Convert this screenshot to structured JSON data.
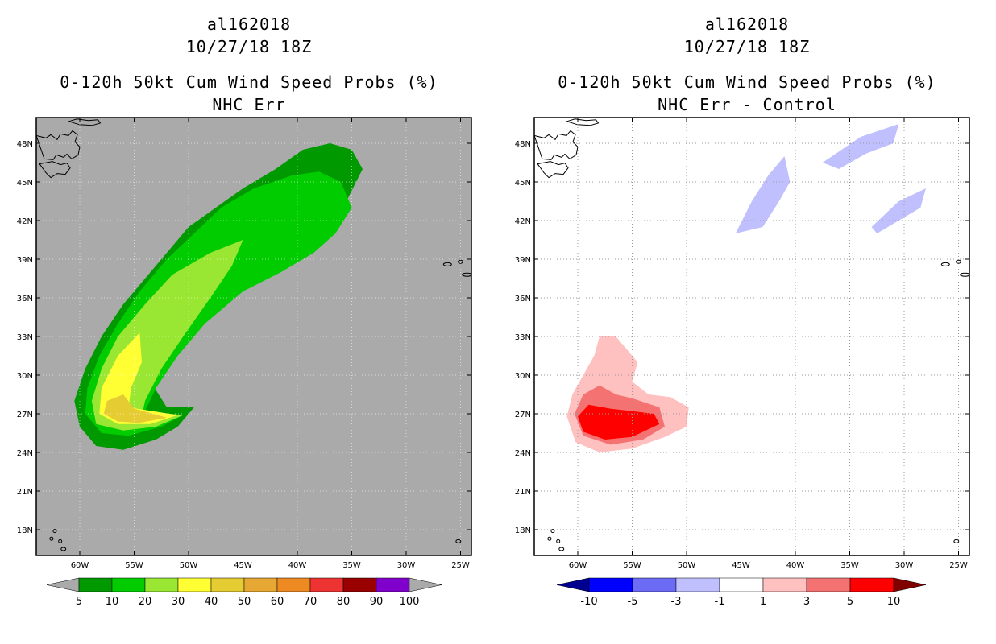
{
  "chart_data": [
    {
      "type": "map-contour",
      "storm_id": "al162018",
      "datetime": "10/27/18 18Z",
      "title": "0-120h 50kt Cum Wind Speed Probs (%)",
      "subtitle": "NHC Err",
      "background_color": "#aaaaaa",
      "lon_range": [
        -64,
        -24
      ],
      "lat_range": [
        16,
        50
      ],
      "x_ticks": [
        "60W",
        "55W",
        "50W",
        "45W",
        "40W",
        "35W",
        "30W",
        "25W"
      ],
      "x_tick_values": [
        -60,
        -55,
        -50,
        -45,
        -40,
        -35,
        -30,
        -25
      ],
      "y_ticks": [
        "48N",
        "45N",
        "42N",
        "39N",
        "36N",
        "33N",
        "30N",
        "27N",
        "24N",
        "21N",
        "18N"
      ],
      "y_tick_values": [
        48,
        45,
        42,
        39,
        36,
        33,
        30,
        27,
        24,
        21,
        18
      ],
      "colorbar": {
        "labels": [
          "5",
          "10",
          "20",
          "30",
          "40",
          "50",
          "60",
          "70",
          "80",
          "90",
          "100"
        ],
        "colors": [
          "#009900",
          "#00cc00",
          "#99e633",
          "#ffff33",
          "#e6cc33",
          "#e6a833",
          "#ee8a22",
          "#ee3333",
          "#990000",
          "#8000cc"
        ],
        "end_colors": [
          "#aaaaaa",
          "#aaaaaa"
        ]
      },
      "contour_levels": [
        {
          "threshold": "5",
          "color": "#009900",
          "outline": [
            [
              -49.5,
              27.5
            ],
            [
              -51,
              26
            ],
            [
              -53,
              25
            ],
            [
              -56,
              24.2
            ],
            [
              -58.5,
              24.5
            ],
            [
              -60,
              26
            ],
            [
              -60.5,
              28
            ],
            [
              -59.5,
              30.5
            ],
            [
              -58,
              33
            ],
            [
              -56,
              35.5
            ],
            [
              -54,
              37.5
            ],
            [
              -52,
              39.5
            ],
            [
              -50,
              41.5
            ],
            [
              -47.5,
              43
            ],
            [
              -45,
              44.5
            ],
            [
              -42,
              46
            ],
            [
              -39.5,
              47.5
            ],
            [
              -37,
              48
            ],
            [
              -35,
              47.5
            ],
            [
              -34,
              46
            ],
            [
              -35.5,
              43.5
            ],
            [
              -37,
              41.5
            ],
            [
              -38.5,
              40
            ],
            [
              -41,
              38.5
            ],
            [
              -44,
              37.5
            ],
            [
              -47,
              35.5
            ],
            [
              -49.5,
              33.5
            ],
            [
              -52,
              31.5
            ],
            [
              -53.5,
              29.5
            ],
            [
              -52,
              27.5
            ]
          ]
        },
        {
          "threshold": "10",
          "color": "#00cc00",
          "outline": [
            [
              -50.5,
              26.9
            ],
            [
              -52.5,
              26
            ],
            [
              -55.5,
              25.3
            ],
            [
              -58,
              25.5
            ],
            [
              -59.5,
              27
            ],
            [
              -59.3,
              29
            ],
            [
              -58.2,
              31.5
            ],
            [
              -56.5,
              34
            ],
            [
              -54.5,
              36.5
            ],
            [
              -52,
              39
            ],
            [
              -49.5,
              41
            ],
            [
              -47,
              43
            ],
            [
              -44,
              44.5
            ],
            [
              -40.5,
              45.5
            ],
            [
              -38,
              45.8
            ],
            [
              -36,
              45
            ],
            [
              -35,
              43
            ],
            [
              -36.5,
              41
            ],
            [
              -38.5,
              39.5
            ],
            [
              -41.5,
              38
            ],
            [
              -45,
              36.5
            ],
            [
              -48.5,
              34
            ],
            [
              -51,
              31.5
            ],
            [
              -53,
              29
            ],
            [
              -54,
              27.2
            ]
          ]
        },
        {
          "threshold": "20",
          "color": "#99e633",
          "outline": [
            [
              -50.5,
              26.9
            ],
            [
              -53,
              26
            ],
            [
              -56,
              25.7
            ],
            [
              -58.5,
              26.2
            ],
            [
              -58.9,
              28
            ],
            [
              -58,
              30.5
            ],
            [
              -56.5,
              33
            ],
            [
              -54,
              35.5
            ],
            [
              -51.5,
              37.8
            ],
            [
              -48,
              39.5
            ],
            [
              -45,
              40.5
            ],
            [
              -46,
              38.5
            ],
            [
              -48,
              36
            ],
            [
              -50.5,
              33
            ],
            [
              -52.5,
              30.5
            ],
            [
              -54,
              28
            ],
            [
              -54.2,
              27.2
            ]
          ]
        },
        {
          "threshold": "30",
          "color": "#ffff33",
          "outline": [
            [
              -51,
              26.9
            ],
            [
              -53.5,
              26.2
            ],
            [
              -56.5,
              26.2
            ],
            [
              -58.2,
              27
            ],
            [
              -58,
              29
            ],
            [
              -56.5,
              31.5
            ],
            [
              -54.5,
              33.3
            ],
            [
              -54.3,
              31
            ],
            [
              -55.3,
              29
            ],
            [
              -55.5,
              27.5
            ]
          ]
        },
        {
          "threshold": "40",
          "color": "#e6cc33",
          "outline": [
            [
              -52,
              26.7
            ],
            [
              -54.5,
              26.3
            ],
            [
              -56.5,
              26.4
            ],
            [
              -57.8,
              27
            ],
            [
              -57.5,
              28
            ],
            [
              -56,
              28.5
            ],
            [
              -55,
              27.4
            ]
          ]
        }
      ]
    },
    {
      "type": "map-contour",
      "storm_id": "al162018",
      "datetime": "10/27/18 18Z",
      "title": "0-120h 50kt Cum Wind Speed Probs (%)",
      "subtitle": "NHC Err - Control",
      "background_color": "#ffffff",
      "lon_range": [
        -64,
        -24
      ],
      "lat_range": [
        16,
        50
      ],
      "x_ticks": [
        "60W",
        "55W",
        "50W",
        "45W",
        "40W",
        "35W",
        "30W",
        "25W"
      ],
      "x_tick_values": [
        -60,
        -55,
        -50,
        -45,
        -40,
        -35,
        -30,
        -25
      ],
      "y_ticks": [
        "48N",
        "45N",
        "42N",
        "39N",
        "36N",
        "33N",
        "30N",
        "27N",
        "24N",
        "21N",
        "18N"
      ],
      "y_tick_values": [
        48,
        45,
        42,
        39,
        36,
        33,
        30,
        27,
        24,
        21,
        18
      ],
      "colorbar": {
        "labels": [
          "-10",
          "-5",
          "-3",
          "-1",
          "1",
          "3",
          "5",
          "10"
        ],
        "colors": [
          "#0000ff",
          "#6b6bf5",
          "#c0c0ff",
          "#ffffff",
          "#ffc0c0",
          "#f57272",
          "#ff0000"
        ],
        "end_colors": [
          "#000090",
          "#800000"
        ]
      },
      "contour_levels": [
        {
          "threshold": "1",
          "color": "#ffc0c0",
          "outline": [
            [
              -50,
              26
            ],
            [
              -52,
              25.2
            ],
            [
              -55,
              24.3
            ],
            [
              -58,
              24
            ],
            [
              -60.2,
              24.8
            ],
            [
              -61,
              26.8
            ],
            [
              -60.5,
              28.5
            ],
            [
              -59.5,
              30
            ],
            [
              -58.5,
              31.5
            ],
            [
              -58,
              33
            ],
            [
              -56.5,
              33
            ],
            [
              -55.5,
              32
            ],
            [
              -54.5,
              31
            ],
            [
              -55,
              29.5
            ],
            [
              -53.5,
              28.5
            ],
            [
              -51.5,
              28.3
            ],
            [
              -49.8,
              27.5
            ]
          ]
        },
        {
          "threshold": "3",
          "color": "#f57272",
          "outline": [
            [
              -52,
              26
            ],
            [
              -54,
              25
            ],
            [
              -57,
              24.6
            ],
            [
              -59.5,
              25.3
            ],
            [
              -60.3,
              27
            ],
            [
              -59.5,
              28.5
            ],
            [
              -58,
              29.2
            ],
            [
              -56.5,
              28.5
            ],
            [
              -55,
              28.2
            ],
            [
              -52.5,
              27.5
            ]
          ]
        },
        {
          "threshold": "5",
          "color": "#ff0000",
          "outline": [
            [
              -52.5,
              26.2
            ],
            [
              -55,
              25.2
            ],
            [
              -57.5,
              25
            ],
            [
              -59.5,
              25.6
            ],
            [
              -60,
              26.8
            ],
            [
              -59,
              27.7
            ],
            [
              -57,
              27.4
            ],
            [
              -55,
              27.2
            ],
            [
              -53,
              27
            ]
          ]
        },
        {
          "threshold": "-1",
          "color": "#c0c0ff",
          "outline": [
            [
              -45.5,
              41
            ],
            [
              -44,
              43.5
            ],
            [
              -42.5,
              45.5
            ],
            [
              -41,
              47
            ],
            [
              -40.5,
              45
            ],
            [
              -41.5,
              43.5
            ],
            [
              -43,
              41.5
            ]
          ]
        },
        {
          "threshold": "-1",
          "color": "#c0c0ff",
          "outline": [
            [
              -37.5,
              46.5
            ],
            [
              -34,
              48.5
            ],
            [
              -30.5,
              49.5
            ],
            [
              -31,
              48
            ],
            [
              -33.5,
              47.2
            ],
            [
              -36,
              46
            ]
          ]
        },
        {
          "threshold": "-1",
          "color": "#c0c0ff",
          "outline": [
            [
              -33,
              41.5
            ],
            [
              -30.5,
              43.5
            ],
            [
              -28,
              44.5
            ],
            [
              -28.5,
              43
            ],
            [
              -30.5,
              42
            ],
            [
              -32.5,
              41
            ]
          ]
        }
      ]
    }
  ]
}
